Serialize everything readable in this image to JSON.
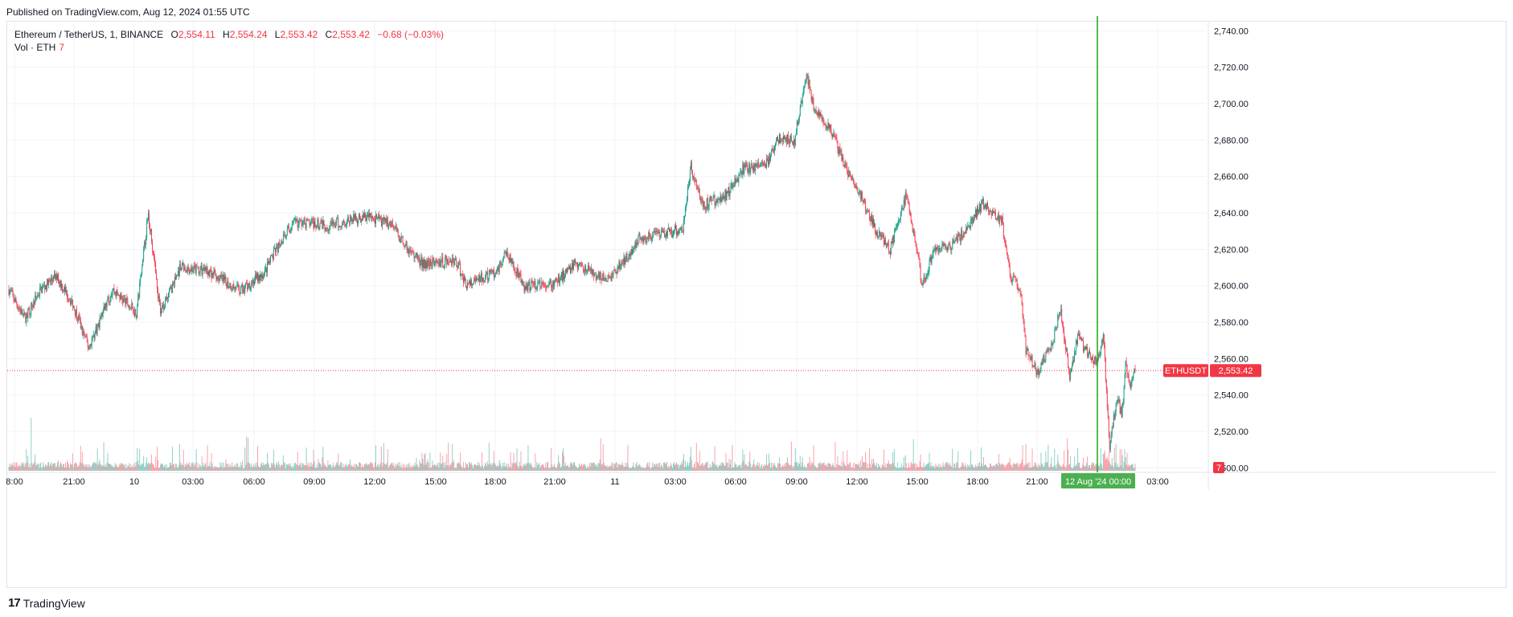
{
  "header": {
    "published": "Published on TradingView.com, Aug 12, 2024 01:55 UTC"
  },
  "legend": {
    "symbol": "Ethereum / TetherUS, 1, BINANCE",
    "open_label": "O",
    "open": "2,554.11",
    "high_label": "H",
    "high": "2,554.24",
    "low_label": "L",
    "low": "2,553.42",
    "close_label": "C",
    "close": "2,553.42",
    "change": "−0.68 (−0.03%)",
    "volume_label": "Vol · ETH",
    "volume": "7"
  },
  "footer": {
    "brand": "TradingView",
    "logo": "17"
  },
  "colors": {
    "up": "#089981",
    "down": "#f23645",
    "crosshair": "#1aa61a",
    "grid": "#f0f3fa"
  },
  "chart_data": {
    "type": "candlestick",
    "symbol": "ETHUSDT",
    "interval": "1 minute",
    "last_price": "2,553.42",
    "last_price_value": 2553.42,
    "last_volume": "7",
    "y_ticks": [
      {
        "v": 2740,
        "label": "2,740.00"
      },
      {
        "v": 2720,
        "label": "2,720.00"
      },
      {
        "v": 2700,
        "label": "2,700.00"
      },
      {
        "v": 2680,
        "label": "2,680.00"
      },
      {
        "v": 2660,
        "label": "2,660.00"
      },
      {
        "v": 2640,
        "label": "2,640.00"
      },
      {
        "v": 2620,
        "label": "2,620.00"
      },
      {
        "v": 2600,
        "label": "2,600.00"
      },
      {
        "v": 2580,
        "label": "2,580.00"
      },
      {
        "v": 2560,
        "label": "2,560.00"
      },
      {
        "v": 2540,
        "label": "2,540.00"
      },
      {
        "v": 2520,
        "label": "2,520.00"
      },
      {
        "v": 2500,
        "label": "2,500.00"
      }
    ],
    "ylim": [
      2490,
      2745
    ],
    "x_ticks": [
      "8:00",
      "21:00",
      "10",
      "03:00",
      "06:00",
      "09:00",
      "12:00",
      "15:00",
      "18:00",
      "21:00",
      "11",
      "03:00",
      "06:00",
      "09:00",
      "12:00",
      "15:00",
      "18:00",
      "21:00",
      "12 Aug '24  00:00",
      "03:00"
    ],
    "crosshair_label": "12 Aug '24  00:00",
    "approx_path": [
      {
        "i": 0,
        "p": 2598
      },
      {
        "i": 20,
        "p": 2582
      },
      {
        "i": 40,
        "p": 2598
      },
      {
        "i": 60,
        "p": 2605
      },
      {
        "i": 80,
        "p": 2590
      },
      {
        "i": 100,
        "p": 2566
      },
      {
        "i": 130,
        "p": 2598
      },
      {
        "i": 160,
        "p": 2585
      },
      {
        "i": 175,
        "p": 2640
      },
      {
        "i": 190,
        "p": 2585
      },
      {
        "i": 215,
        "p": 2610
      },
      {
        "i": 250,
        "p": 2608
      },
      {
        "i": 290,
        "p": 2597
      },
      {
        "i": 320,
        "p": 2607
      },
      {
        "i": 345,
        "p": 2628
      },
      {
        "i": 360,
        "p": 2635
      },
      {
        "i": 400,
        "p": 2633
      },
      {
        "i": 450,
        "p": 2638
      },
      {
        "i": 480,
        "p": 2634
      },
      {
        "i": 500,
        "p": 2620
      },
      {
        "i": 520,
        "p": 2612
      },
      {
        "i": 560,
        "p": 2614
      },
      {
        "i": 575,
        "p": 2600
      },
      {
        "i": 610,
        "p": 2608
      },
      {
        "i": 625,
        "p": 2618
      },
      {
        "i": 645,
        "p": 2600
      },
      {
        "i": 680,
        "p": 2600
      },
      {
        "i": 710,
        "p": 2612
      },
      {
        "i": 750,
        "p": 2603
      },
      {
        "i": 770,
        "p": 2613
      },
      {
        "i": 790,
        "p": 2626
      },
      {
        "i": 820,
        "p": 2628
      },
      {
        "i": 845,
        "p": 2632
      },
      {
        "i": 855,
        "p": 2665
      },
      {
        "i": 870,
        "p": 2644
      },
      {
        "i": 900,
        "p": 2650
      },
      {
        "i": 920,
        "p": 2664
      },
      {
        "i": 950,
        "p": 2667
      },
      {
        "i": 965,
        "p": 2681
      },
      {
        "i": 985,
        "p": 2680
      },
      {
        "i": 1000,
        "p": 2716
      },
      {
        "i": 1010,
        "p": 2696
      },
      {
        "i": 1030,
        "p": 2686
      },
      {
        "i": 1050,
        "p": 2664
      },
      {
        "i": 1070,
        "p": 2648
      },
      {
        "i": 1085,
        "p": 2632
      },
      {
        "i": 1105,
        "p": 2620
      },
      {
        "i": 1125,
        "p": 2650
      },
      {
        "i": 1140,
        "p": 2615
      },
      {
        "i": 1145,
        "p": 2600
      },
      {
        "i": 1160,
        "p": 2620
      },
      {
        "i": 1180,
        "p": 2622
      },
      {
        "i": 1200,
        "p": 2630
      },
      {
        "i": 1220,
        "p": 2645
      },
      {
        "i": 1245,
        "p": 2635
      },
      {
        "i": 1255,
        "p": 2606
      },
      {
        "i": 1268,
        "p": 2598
      },
      {
        "i": 1275,
        "p": 2565
      },
      {
        "i": 1290,
        "p": 2552
      },
      {
        "i": 1300,
        "p": 2563
      },
      {
        "i": 1310,
        "p": 2570
      },
      {
        "i": 1318,
        "p": 2588
      },
      {
        "i": 1330,
        "p": 2550
      },
      {
        "i": 1340,
        "p": 2572
      },
      {
        "i": 1355,
        "p": 2561
      },
      {
        "i": 1365,
        "p": 2558
      },
      {
        "i": 1372,
        "p": 2574
      },
      {
        "i": 1380,
        "p": 2512
      },
      {
        "i": 1390,
        "p": 2540
      },
      {
        "i": 1395,
        "p": 2528
      },
      {
        "i": 1400,
        "p": 2556
      },
      {
        "i": 1406,
        "p": 2543
      },
      {
        "i": 1412,
        "p": 2553.42
      }
    ]
  }
}
